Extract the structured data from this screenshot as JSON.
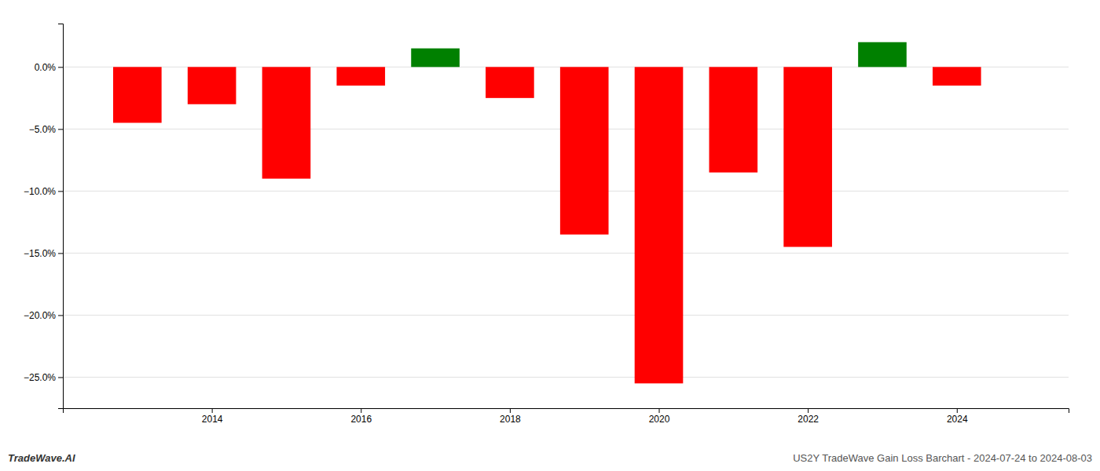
{
  "chart_data": {
    "type": "bar",
    "x": [
      2013,
      2014,
      2015,
      2016,
      2017,
      2018,
      2019,
      2020,
      2021,
      2022,
      2023,
      2024
    ],
    "values": [
      -4.5,
      -3.0,
      -9.0,
      -1.5,
      1.5,
      -2.5,
      -13.5,
      -25.5,
      -8.5,
      -14.5,
      2.0,
      -1.5
    ],
    "colors": [
      "#ff0000",
      "#ff0000",
      "#ff0000",
      "#ff0000",
      "#008000",
      "#ff0000",
      "#ff0000",
      "#ff0000",
      "#ff0000",
      "#ff0000",
      "#008000",
      "#ff0000"
    ],
    "ylim": [
      -27.5,
      3.5
    ],
    "yticks": [
      {
        "value": 0.0,
        "label": "0.0%"
      },
      {
        "value": -5.0,
        "label": "−5.0%"
      },
      {
        "value": -10.0,
        "label": "−10.0%"
      },
      {
        "value": -15.0,
        "label": "−15.0%"
      },
      {
        "value": -20.0,
        "label": "−20.0%"
      },
      {
        "value": -25.0,
        "label": "−25.0%"
      }
    ],
    "xlim": [
      2012.0,
      2025.5
    ],
    "xticks": [
      2014,
      2016,
      2018,
      2020,
      2022,
      2024
    ],
    "grid": true,
    "annotations": [
      "TradeWave.AI",
      "US2Y TradeWave Gain Loss Barchart - 2024-07-24 to 2024-08-03"
    ]
  }
}
